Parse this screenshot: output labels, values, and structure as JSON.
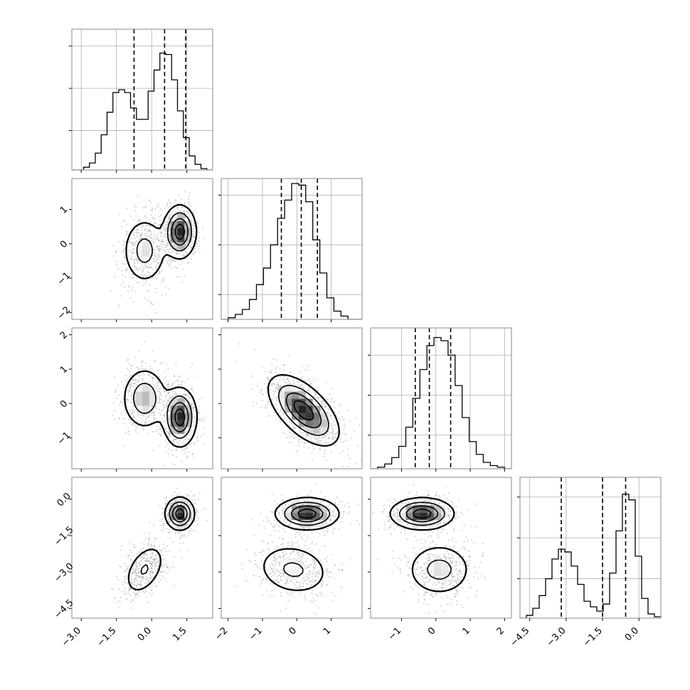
{
  "chart_data": {
    "type": "corner",
    "title": "",
    "n_params": 4,
    "colors": {
      "hist": "#000000",
      "grid": "#b0b0b0",
      "scatter": "#9a9a9a",
      "density_dark": "#222222",
      "background": "#ffffff"
    },
    "grid": true,
    "params": [
      {
        "index": 0,
        "range": [
          -3.4,
          2.6
        ],
        "ticks": [
          -3.0,
          -1.5,
          0.0,
          1.5
        ],
        "tick_labels": [
          "−3.0",
          "−1.5",
          "0.0",
          "1.5"
        ],
        "quantiles": [
          -0.75,
          0.55,
          1.45
        ],
        "hist_max": 1.0,
        "hist_yticks": [
          0.28,
          0.58,
          0.88
        ],
        "hist": [
          0.0,
          0.0,
          0.02,
          0.05,
          0.12,
          0.25,
          0.41,
          0.55,
          0.57,
          0.55,
          0.44,
          0.36,
          0.36,
          0.56,
          0.71,
          0.83,
          0.82,
          0.64,
          0.42,
          0.23,
          0.1,
          0.04,
          0.01,
          0.0
        ],
        "modes": [
          {
            "center": -0.3,
            "weight": 0.45
          },
          {
            "center": 1.2,
            "weight": 0.55
          }
        ]
      },
      {
        "index": 1,
        "range": [
          -2.2,
          1.9
        ],
        "ticks": [
          -2,
          -1,
          0,
          1
        ],
        "tick_labels": [
          "−2",
          "−1",
          "0",
          "1"
        ],
        "quantiles": [
          -0.45,
          0.13,
          0.6
        ],
        "hist_max": 0.85,
        "hist_yticks": [
          0.15,
          0.45,
          0.75
        ],
        "hist": [
          0.0,
          0.01,
          0.03,
          0.06,
          0.12,
          0.21,
          0.31,
          0.45,
          0.61,
          0.72,
          0.82,
          0.81,
          0.71,
          0.48,
          0.28,
          0.13,
          0.05,
          0.02,
          0.0,
          0.0
        ]
      },
      {
        "index": 2,
        "range": [
          -1.9,
          2.2
        ],
        "ticks": [
          -1,
          0,
          1,
          2
        ],
        "tick_labels": [
          "−1",
          "0",
          "1",
          "2"
        ],
        "quantiles": [
          -0.6,
          -0.19,
          0.43
        ],
        "hist_max": 0.88,
        "hist_yticks": [
          0.21,
          0.46,
          0.71
        ],
        "hist": [
          0.0,
          0.01,
          0.03,
          0.07,
          0.14,
          0.26,
          0.44,
          0.62,
          0.77,
          0.82,
          0.8,
          0.71,
          0.52,
          0.32,
          0.17,
          0.09,
          0.04,
          0.02,
          0.01,
          0.0
        ]
      },
      {
        "index": 3,
        "range": [
          -4.9,
          0.9
        ],
        "ticks": [
          -4.5,
          -3.0,
          -1.5,
          0.0
        ],
        "tick_labels": [
          "−4.5",
          "−3.0",
          "−1.5",
          "0.0"
        ],
        "quantiles": [
          -3.2,
          -1.5,
          -0.55
        ],
        "hist_max": 1.0,
        "hist_yticks": [
          0.28,
          0.57,
          0.86
        ],
        "hist": [
          0.0,
          0.02,
          0.07,
          0.16,
          0.28,
          0.42,
          0.49,
          0.47,
          0.37,
          0.24,
          0.12,
          0.08,
          0.05,
          0.1,
          0.32,
          0.62,
          0.88,
          0.84,
          0.44,
          0.14,
          0.03,
          0.01
        ],
        "modes": [
          {
            "center": -2.9,
            "weight": 0.45
          },
          {
            "center": -0.55,
            "weight": 0.55
          }
        ]
      }
    ],
    "pairs": [
      {
        "x": 0,
        "y": 1,
        "clusters": [
          {
            "mx": -0.3,
            "my": -0.2,
            "sx": 0.48,
            "sy": 0.5,
            "rho": 0.0,
            "w": 0.45
          },
          {
            "mx": 1.2,
            "my": 0.35,
            "sx": 0.34,
            "sy": 0.38,
            "rho": 0.0,
            "w": 0.55
          }
        ]
      },
      {
        "x": 0,
        "y": 2,
        "clusters": [
          {
            "mx": -0.3,
            "my": 0.15,
            "sx": 0.48,
            "sy": 0.45,
            "rho": 0.0,
            "w": 0.45
          },
          {
            "mx": 1.2,
            "my": -0.4,
            "sx": 0.35,
            "sy": 0.42,
            "rho": 0.0,
            "w": 0.55
          }
        ]
      },
      {
        "x": 1,
        "y": 2,
        "clusters": [
          {
            "mx": 0.2,
            "my": -0.2,
            "sx": 0.5,
            "sy": 0.5,
            "rho": -0.6,
            "w": 1.0
          }
        ]
      },
      {
        "x": 0,
        "y": 3,
        "clusters": [
          {
            "mx": -0.3,
            "my": -2.9,
            "sx": 0.45,
            "sy": 0.55,
            "rho": 0.45,
            "w": 0.45
          },
          {
            "mx": 1.2,
            "my": -0.6,
            "sx": 0.3,
            "sy": 0.33,
            "rho": 0.0,
            "w": 0.55
          }
        ]
      },
      {
        "x": 1,
        "y": 3,
        "clusters": [
          {
            "mx": -0.1,
            "my": -2.9,
            "sx": 0.55,
            "sy": 0.55,
            "rho": -0.15,
            "w": 0.45
          },
          {
            "mx": 0.3,
            "my": -0.6,
            "sx": 0.45,
            "sy": 0.32,
            "rho": 0.0,
            "w": 0.55
          }
        ]
      },
      {
        "x": 2,
        "y": 3,
        "clusters": [
          {
            "mx": 0.1,
            "my": -2.9,
            "sx": 0.48,
            "sy": 0.55,
            "rho": 0.0,
            "w": 0.45
          },
          {
            "mx": -0.4,
            "my": -0.6,
            "sx": 0.45,
            "sy": 0.32,
            "rho": 0.0,
            "w": 0.55
          }
        ]
      }
    ]
  }
}
